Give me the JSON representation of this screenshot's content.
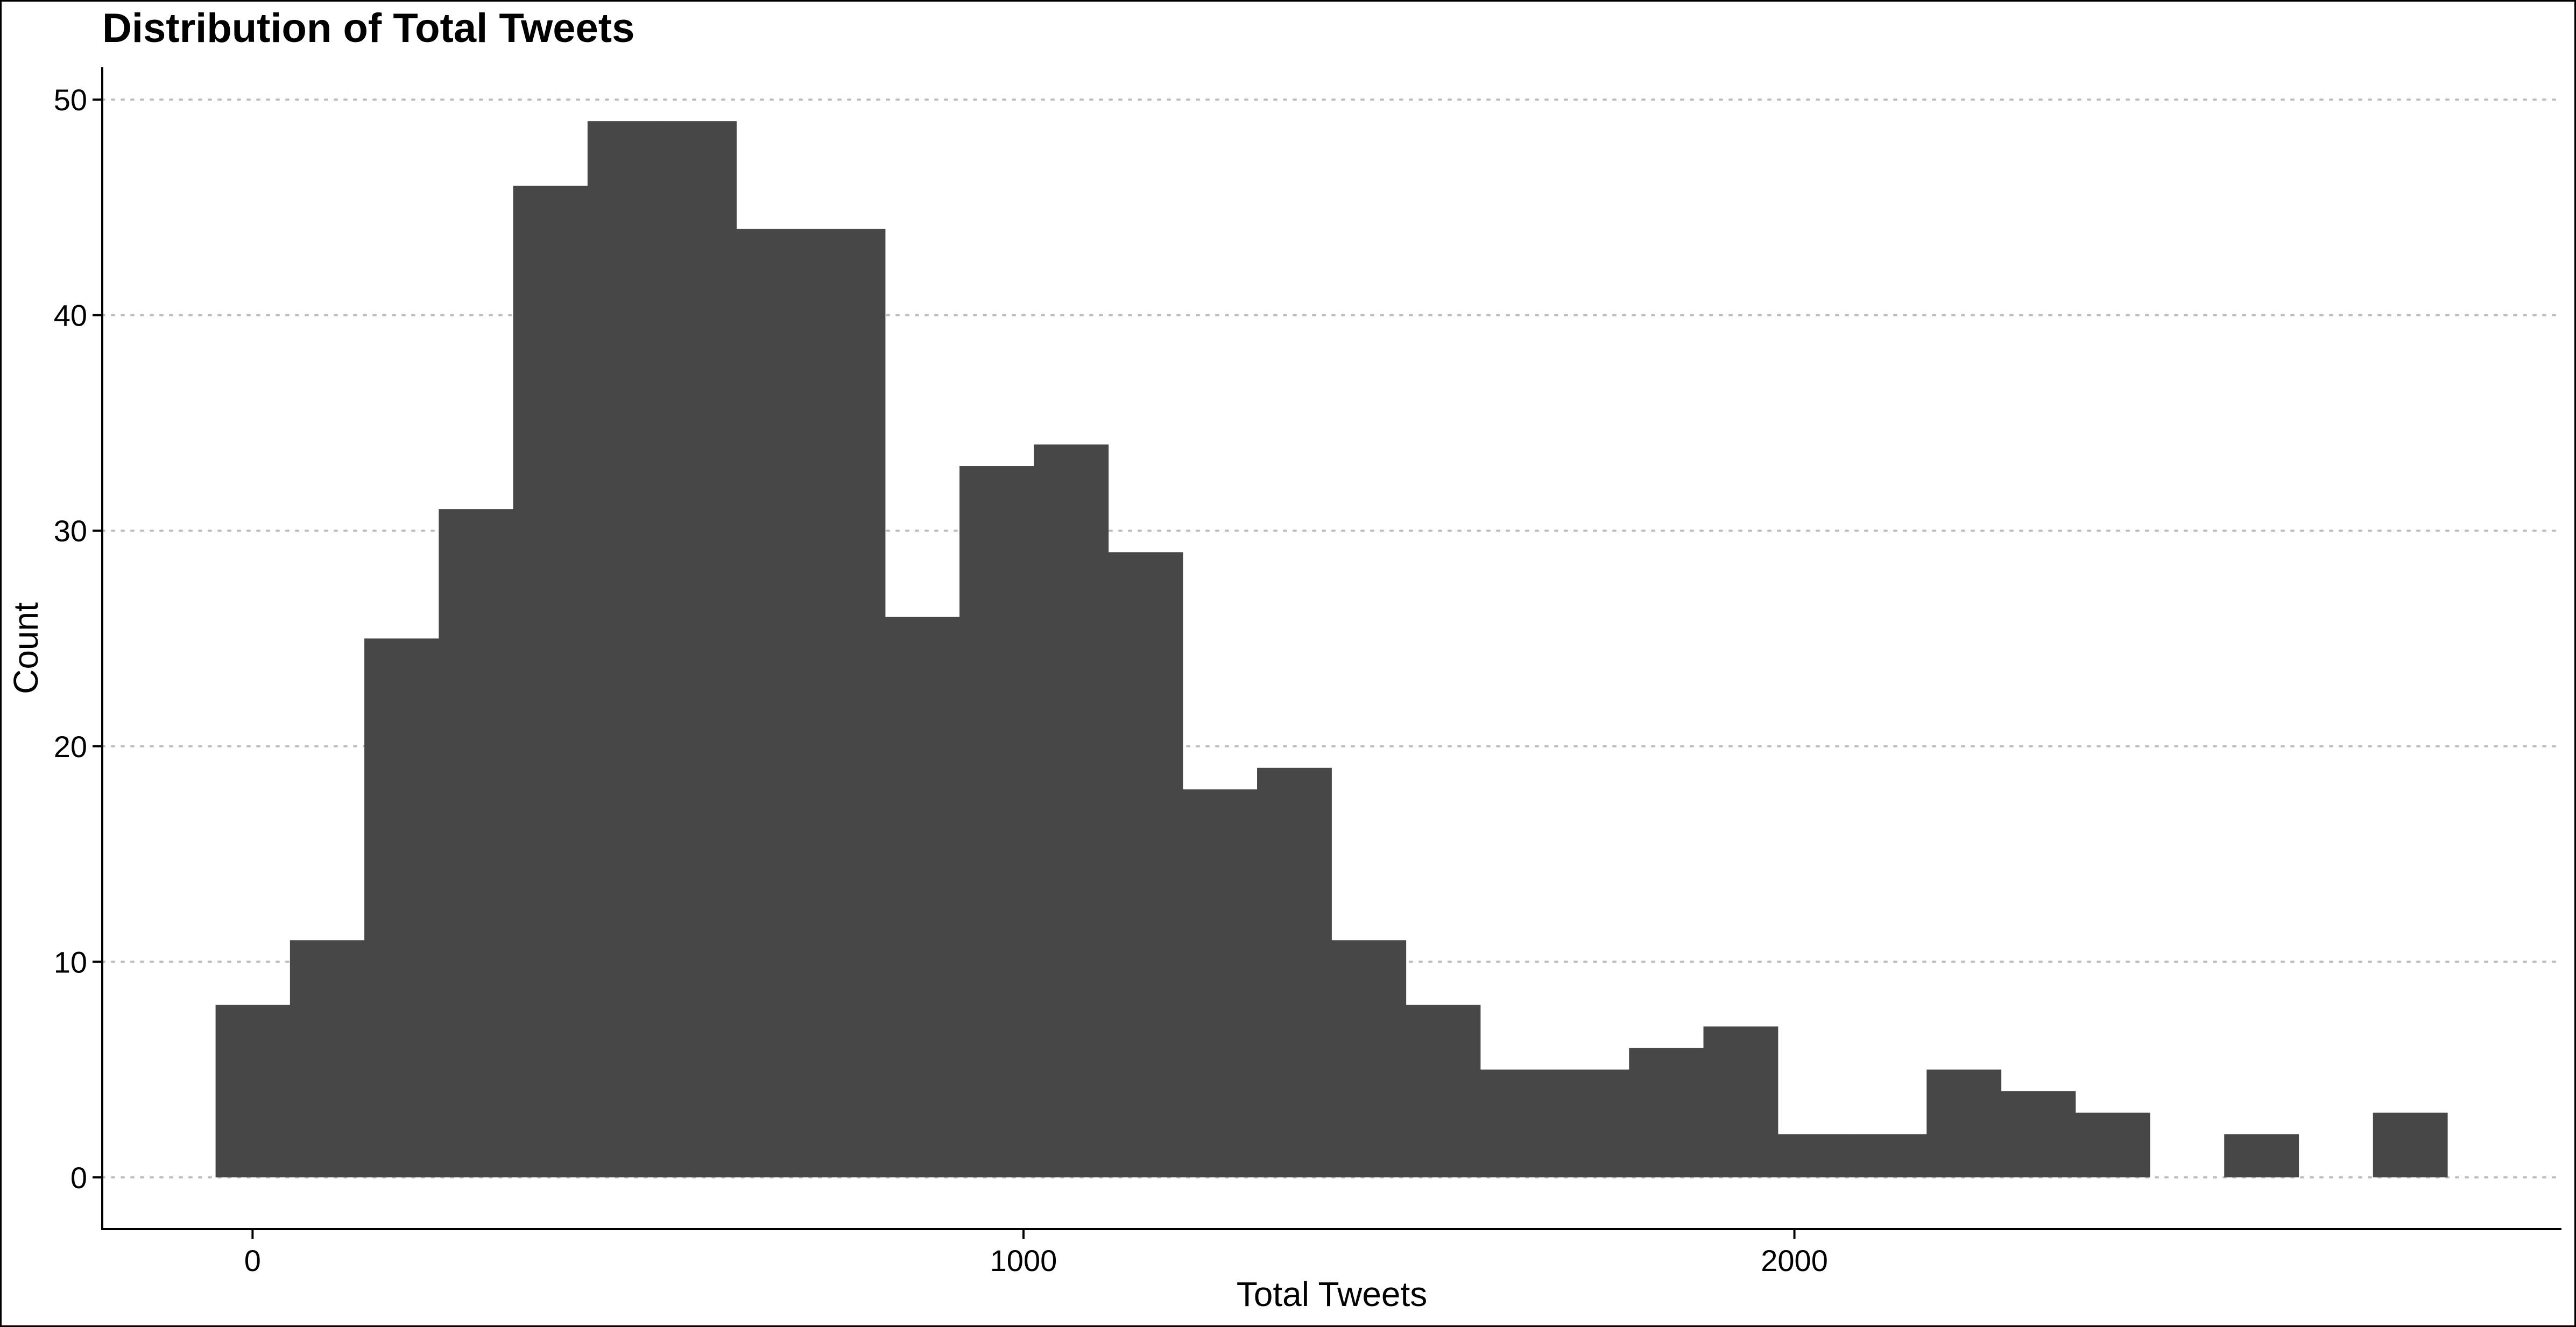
{
  "chart_data": {
    "type": "bar",
    "subtype": "histogram",
    "title": "Distribution of Total Tweets",
    "xlabel": "Total Tweets",
    "ylabel": "Count",
    "bin_width": 96.5,
    "first_bin_start": -48,
    "bins": [
      {
        "start": -48,
        "end": 48.5,
        "count": 8
      },
      {
        "start": 48.5,
        "end": 145,
        "count": 11
      },
      {
        "start": 145,
        "end": 241.5,
        "count": 25
      },
      {
        "start": 241.5,
        "end": 338,
        "count": 31
      },
      {
        "start": 338,
        "end": 434.5,
        "count": 46
      },
      {
        "start": 434.5,
        "end": 531,
        "count": 49
      },
      {
        "start": 531,
        "end": 627.5,
        "count": 49
      },
      {
        "start": 627.5,
        "end": 724,
        "count": 44
      },
      {
        "start": 724,
        "end": 820.5,
        "count": 44
      },
      {
        "start": 820.5,
        "end": 917,
        "count": 26
      },
      {
        "start": 917,
        "end": 1013.5,
        "count": 33
      },
      {
        "start": 1013.5,
        "end": 1110,
        "count": 34
      },
      {
        "start": 1110,
        "end": 1206.5,
        "count": 29
      },
      {
        "start": 1206.5,
        "end": 1303,
        "count": 18
      },
      {
        "start": 1303,
        "end": 1399.5,
        "count": 19
      },
      {
        "start": 1399.5,
        "end": 1496,
        "count": 11
      },
      {
        "start": 1496,
        "end": 1592.5,
        "count": 8
      },
      {
        "start": 1592.5,
        "end": 1689,
        "count": 5
      },
      {
        "start": 1689,
        "end": 1785.5,
        "count": 5
      },
      {
        "start": 1785.5,
        "end": 1882,
        "count": 6
      },
      {
        "start": 1882,
        "end": 1978.5,
        "count": 7
      },
      {
        "start": 1978.5,
        "end": 2075,
        "count": 2
      },
      {
        "start": 2075,
        "end": 2171.5,
        "count": 2
      },
      {
        "start": 2171.5,
        "end": 2268,
        "count": 5
      },
      {
        "start": 2268,
        "end": 2364.5,
        "count": 4
      },
      {
        "start": 2364.5,
        "end": 2461,
        "count": 3
      },
      {
        "start": 2461,
        "end": 2557.5,
        "count": 0
      },
      {
        "start": 2557.5,
        "end": 2654,
        "count": 2
      },
      {
        "start": 2654,
        "end": 2750.5,
        "count": 0
      },
      {
        "start": 2750.5,
        "end": 2847,
        "count": 3
      }
    ],
    "xlim": [
      -195,
      2995
    ],
    "ylim": [
      -2.4,
      51.5
    ],
    "xticks": [
      0,
      1000,
      2000
    ],
    "yticks": [
      0,
      10,
      20,
      30,
      40,
      50
    ],
    "bar_color": "#474747",
    "grid": "horizontal-dotted",
    "grid_color": "#bdbdbd",
    "legend": "none"
  }
}
